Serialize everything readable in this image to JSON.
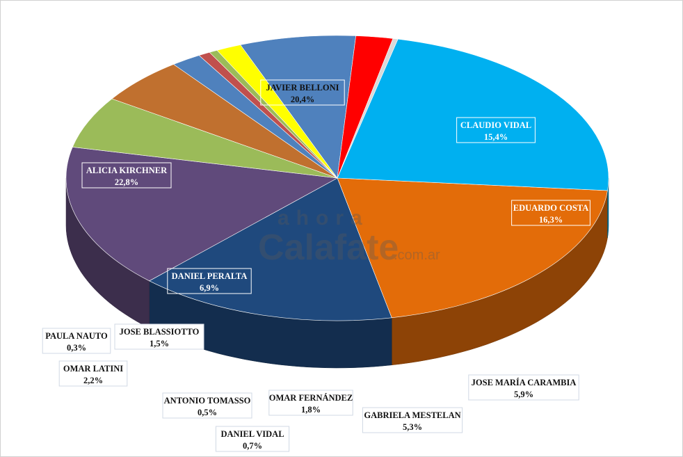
{
  "chart_data": {
    "type": "pie",
    "title": "",
    "slices": [
      {
        "label": "JAVIER BELLONI",
        "value_text": "20,4%",
        "value": 20.4,
        "color": "#e36c09"
      },
      {
        "label": "CLAUDIO VIDAL",
        "value_text": "15,4%",
        "value": 15.4,
        "color": "#1f497d"
      },
      {
        "label": "EDUARDO COSTA",
        "value_text": "16,3%",
        "value": 16.3,
        "color": "#604a7b"
      },
      {
        "label": "JOSE MARÍA CARAMBIA",
        "value_text": "5,9%",
        "value": 5.9,
        "color": "#9bbb59"
      },
      {
        "label": "GABRIELA MESTELAN",
        "value_text": "5,3%",
        "value": 5.3,
        "color": "#c0702f"
      },
      {
        "label": "OMAR FERNÁNDEZ",
        "value_text": "1,8%",
        "value": 1.8,
        "color": "#4f81bd"
      },
      {
        "label": "DANIEL VIDAL",
        "value_text": "0,7%",
        "value": 0.7,
        "color": "#c0504d"
      },
      {
        "label": "ANTONIO TOMASSO",
        "value_text": "0,5%",
        "value": 0.5,
        "color": "#9bbb59"
      },
      {
        "label": "JOSE BLASSIOTTO",
        "value_text": "1,5%",
        "value": 1.5,
        "color": "#ffff00"
      },
      {
        "label": "DANIEL PERALTA",
        "value_text": "6,9%",
        "value": 6.9,
        "color": "#4f81bd"
      },
      {
        "label": "OMAR LATINI",
        "value_text": "2,2%",
        "value": 2.2,
        "color": "#ff0000"
      },
      {
        "label": "PAULA NAUTO",
        "value_text": "0,3%",
        "value": 0.3,
        "color": "#d9d9d9"
      },
      {
        "label": "ALICIA KIRCHNER",
        "value_text": "22,8%",
        "value": 22.8,
        "color": "#00b0f0"
      }
    ]
  },
  "watermark": {
    "top": "ahora",
    "main": "Calafate",
    "suffix": ".com.ar"
  }
}
